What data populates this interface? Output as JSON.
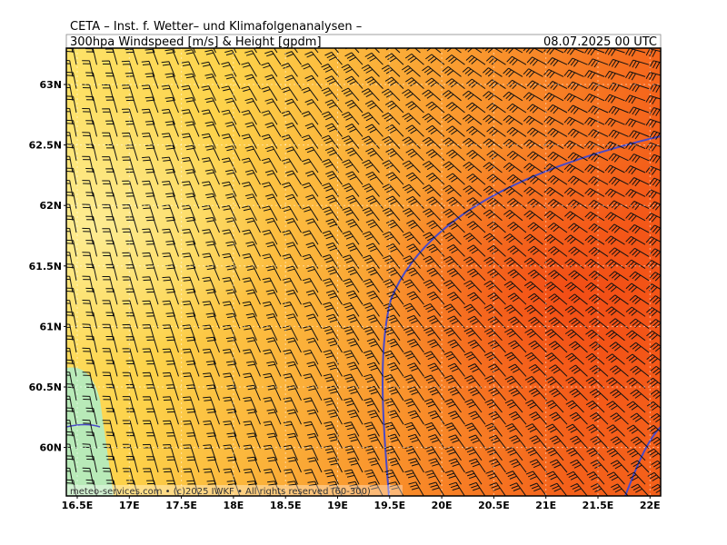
{
  "header": {
    "title": "CETA – Inst. f. Wetter– und Klimafolgenanalysen –",
    "subtitle": "300hpa Windspeed [m/s] & Height [gpdm]",
    "date": "08.07.2025 00 UTC"
  },
  "map": {
    "lat_labels": [
      "63N",
      "62.5N",
      "62N",
      "61.5N",
      "61N",
      "60.5N",
      "60N"
    ],
    "lon_labels": [
      "16.5E",
      "17E",
      "17.5E",
      "18E",
      "18.5E",
      "19E",
      "19.5E",
      "20E",
      "20.5E",
      "21E",
      "21.5E",
      "22E"
    ],
    "footer": "meteo-services.com • (c)2025 IWKF • All rights reserved (60-300)"
  }
}
